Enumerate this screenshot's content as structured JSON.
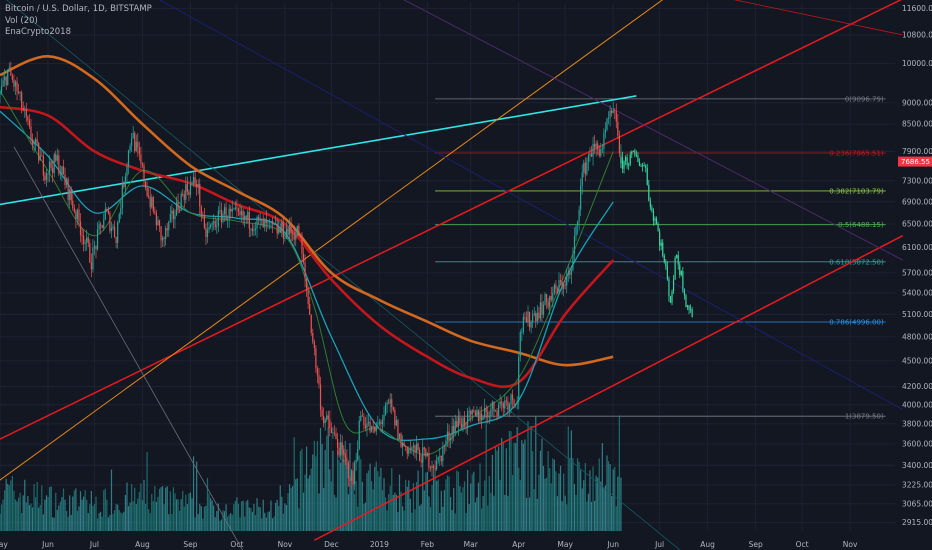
{
  "legend": {
    "line1": "Bitcoin / U.S. Dollar, 1D, BITSTAMP",
    "line2": "Vol (20)",
    "line3": "EnaCrypto2018"
  },
  "colors": {
    "background": "#131722",
    "grid": "#1e2232",
    "axis_text": "#b2b5be",
    "candle_up": "#26a69a",
    "candle_down": "#ef5350",
    "projection": "#36d6a0",
    "ma_fast": "#2e7d32",
    "ma_cyan": "#17a2b8",
    "ma_red": "#c4161c",
    "ma_orange": "#d2691e",
    "trend_cyan": "#2ee6e6",
    "trend_red": "#e8191f",
    "trend_orange": "#e8891a",
    "trend_purple": "#4a2a6a",
    "trend_navy": "#1a1f6e",
    "trend_grey": "#6b6f7a",
    "trend_teal": "#145a66",
    "price_tag": "#f23645"
  },
  "chart_data": {
    "type": "candlestick",
    "title": "Bitcoin / U.S. Dollar, 1D, BITSTAMP",
    "y_axis": {
      "scale": "log",
      "range": [
        2850,
        11800
      ],
      "tick_labels": [
        "11600.00",
        "10800.00",
        "10000.00",
        "9000.00",
        "8500.00",
        "7900.00",
        "7300.00",
        "6900.00",
        "6500.00",
        "6100.00",
        "5700.00",
        "5400.00",
        "5100.00",
        "4800.00",
        "4500.00",
        "4200.00",
        "4000.00",
        "3800.00",
        "3600.00",
        "3400.00",
        "3225.00",
        "3065.00",
        "2915.00"
      ]
    },
    "x_axis": {
      "range": [
        "2018-05-01",
        "2019-11-30"
      ],
      "tick_labels": [
        "May",
        "Jun",
        "Jul",
        "Aug",
        "Sep",
        "Oct",
        "Nov",
        "Dec",
        "2019",
        "Feb",
        "Mar",
        "Apr",
        "May",
        "Jun",
        "Jul",
        "Aug",
        "Sep",
        "Oct",
        "Nov"
      ],
      "tick_dates": [
        "2018-05-01",
        "2018-06-01",
        "2018-07-01",
        "2018-08-01",
        "2018-09-01",
        "2018-10-01",
        "2018-11-01",
        "2018-12-01",
        "2019-01-01",
        "2019-02-01",
        "2019-03-01",
        "2019-04-01",
        "2019-05-01",
        "2019-06-01",
        "2019-07-01",
        "2019-08-01",
        "2019-09-01",
        "2019-10-01",
        "2019-11-01"
      ]
    },
    "current_price": "7686.55",
    "price_anchors": [
      {
        "date": "2018-05-01",
        "price": 9200
      },
      {
        "date": "2018-05-06",
        "price": 9800
      },
      {
        "date": "2018-05-12",
        "price": 9300
      },
      {
        "date": "2018-05-20",
        "price": 8300
      },
      {
        "date": "2018-05-30",
        "price": 7500
      },
      {
        "date": "2018-06-07",
        "price": 7700
      },
      {
        "date": "2018-06-20",
        "price": 6600
      },
      {
        "date": "2018-06-29",
        "price": 5900
      },
      {
        "date": "2018-07-08",
        "price": 6700
      },
      {
        "date": "2018-07-15",
        "price": 6300
      },
      {
        "date": "2018-07-25",
        "price": 8300
      },
      {
        "date": "2018-08-05",
        "price": 7000
      },
      {
        "date": "2018-08-14",
        "price": 6200
      },
      {
        "date": "2018-08-28",
        "price": 7100
      },
      {
        "date": "2018-09-05",
        "price": 7300
      },
      {
        "date": "2018-09-10",
        "price": 6300
      },
      {
        "date": "2018-09-22",
        "price": 6700
      },
      {
        "date": "2018-10-10",
        "price": 6550
      },
      {
        "date": "2018-10-25",
        "price": 6400
      },
      {
        "date": "2018-11-10",
        "price": 6350
      },
      {
        "date": "2018-11-14",
        "price": 5600
      },
      {
        "date": "2018-11-20",
        "price": 4600
      },
      {
        "date": "2018-11-25",
        "price": 3900
      },
      {
        "date": "2018-12-05",
        "price": 3600
      },
      {
        "date": "2018-12-15",
        "price": 3250
      },
      {
        "date": "2018-12-20",
        "price": 3900
      },
      {
        "date": "2018-12-28",
        "price": 3700
      },
      {
        "date": "2019-01-08",
        "price": 4000
      },
      {
        "date": "2019-01-15",
        "price": 3600
      },
      {
        "date": "2019-01-28",
        "price": 3500
      },
      {
        "date": "2019-02-07",
        "price": 3400
      },
      {
        "date": "2019-02-18",
        "price": 3800
      },
      {
        "date": "2019-03-01",
        "price": 3850
      },
      {
        "date": "2019-03-20",
        "price": 4000
      },
      {
        "date": "2019-03-31",
        "price": 4100
      },
      {
        "date": "2019-04-02",
        "price": 4900
      },
      {
        "date": "2019-04-20",
        "price": 5300
      },
      {
        "date": "2019-05-05",
        "price": 5700
      },
      {
        "date": "2019-05-12",
        "price": 7400
      },
      {
        "date": "2019-05-17",
        "price": 7900
      },
      {
        "date": "2019-05-25",
        "price": 8000
      },
      {
        "date": "2019-05-30",
        "price": 8700
      },
      {
        "date": "2019-06-03",
        "price": 8600
      },
      {
        "date": "2019-06-06",
        "price": 7700
      }
    ],
    "projection_anchors": [
      {
        "date": "2019-06-06",
        "price": 7650
      },
      {
        "date": "2019-06-15",
        "price": 7800
      },
      {
        "date": "2019-06-22",
        "price": 7550
      },
      {
        "date": "2019-06-25",
        "price": 6800
      },
      {
        "date": "2019-06-28",
        "price": 6600
      },
      {
        "date": "2019-07-03",
        "price": 6000
      },
      {
        "date": "2019-07-08",
        "price": 5300
      },
      {
        "date": "2019-07-12",
        "price": 6000
      },
      {
        "date": "2019-07-18",
        "price": 5300
      },
      {
        "date": "2019-07-22",
        "price": 5100
      }
    ],
    "moving_averages": [
      {
        "key": "ma_orange",
        "points": [
          {
            "date": "2018-05-01",
            "price": 9700
          },
          {
            "date": "2018-06-01",
            "price": 10200
          },
          {
            "date": "2018-07-01",
            "price": 9600
          },
          {
            "date": "2018-08-01",
            "price": 8500
          },
          {
            "date": "2018-09-01",
            "price": 7600
          },
          {
            "date": "2018-10-01",
            "price": 7100
          },
          {
            "date": "2018-11-01",
            "price": 6600
          },
          {
            "date": "2018-12-01",
            "price": 5700
          },
          {
            "date": "2019-01-01",
            "price": 5300
          },
          {
            "date": "2019-02-01",
            "price": 5000
          },
          {
            "date": "2019-03-01",
            "price": 4750
          },
          {
            "date": "2019-04-01",
            "price": 4600
          },
          {
            "date": "2019-05-01",
            "price": 4450
          },
          {
            "date": "2019-06-01",
            "price": 4550
          }
        ]
      },
      {
        "key": "ma_red",
        "points": [
          {
            "date": "2018-05-01",
            "price": 8900
          },
          {
            "date": "2018-06-01",
            "price": 8700
          },
          {
            "date": "2018-07-01",
            "price": 7900
          },
          {
            "date": "2018-08-01",
            "price": 7500
          },
          {
            "date": "2018-09-01",
            "price": 7250
          },
          {
            "date": "2018-10-01",
            "price": 6850
          },
          {
            "date": "2018-11-01",
            "price": 6500
          },
          {
            "date": "2018-12-01",
            "price": 5600
          },
          {
            "date": "2019-01-01",
            "price": 4950
          },
          {
            "date": "2019-02-01",
            "price": 4550
          },
          {
            "date": "2019-03-01",
            "price": 4300
          },
          {
            "date": "2019-04-01",
            "price": 4250
          },
          {
            "date": "2019-05-01",
            "price": 5100
          },
          {
            "date": "2019-06-01",
            "price": 5900
          }
        ]
      },
      {
        "key": "ma_cyan",
        "points": [
          {
            "date": "2018-05-01",
            "price": 8800
          },
          {
            "date": "2018-06-01",
            "price": 7800
          },
          {
            "date": "2018-07-01",
            "price": 6700
          },
          {
            "date": "2018-08-01",
            "price": 7200
          },
          {
            "date": "2018-09-01",
            "price": 6700
          },
          {
            "date": "2018-10-01",
            "price": 6600
          },
          {
            "date": "2018-11-01",
            "price": 6350
          },
          {
            "date": "2018-12-01",
            "price": 4800
          },
          {
            "date": "2019-01-01",
            "price": 3750
          },
          {
            "date": "2019-02-01",
            "price": 3650
          },
          {
            "date": "2019-03-01",
            "price": 3780
          },
          {
            "date": "2019-04-01",
            "price": 4050
          },
          {
            "date": "2019-05-01",
            "price": 5600
          },
          {
            "date": "2019-06-01",
            "price": 6900
          }
        ]
      },
      {
        "key": "ma_fast",
        "points": [
          {
            "date": "2018-05-01",
            "price": 9300
          },
          {
            "date": "2018-06-01",
            "price": 7500
          },
          {
            "date": "2018-07-01",
            "price": 6300
          },
          {
            "date": "2018-08-01",
            "price": 7500
          },
          {
            "date": "2018-09-01",
            "price": 6700
          },
          {
            "date": "2018-10-01",
            "price": 6550
          },
          {
            "date": "2018-11-01",
            "price": 6300
          },
          {
            "date": "2018-11-20",
            "price": 5200
          },
          {
            "date": "2018-12-10",
            "price": 3800
          },
          {
            "date": "2019-01-01",
            "price": 3750
          },
          {
            "date": "2019-02-01",
            "price": 3500
          },
          {
            "date": "2019-03-01",
            "price": 3850
          },
          {
            "date": "2019-04-01",
            "price": 4300
          },
          {
            "date": "2019-05-01",
            "price": 5700
          },
          {
            "date": "2019-06-01",
            "price": 7900
          }
        ]
      }
    ],
    "trendlines": [
      {
        "key": "trend_cyan",
        "width": 1.6,
        "points": [
          {
            "date": "2018-03-20",
            "price": 6650
          },
          {
            "date": "2019-06-16",
            "price": 9170
          }
        ]
      },
      {
        "key": "trend_red",
        "width": 1.5,
        "points": [
          {
            "date": "2018-03-20",
            "price": 3350
          },
          {
            "date": "2019-12-05",
            "price": 11900
          }
        ]
      },
      {
        "key": "trend_red",
        "width": 1.5,
        "points": [
          {
            "date": "2018-11-20",
            "price": 2780
          },
          {
            "date": "2019-12-05",
            "price": 6300
          }
        ]
      },
      {
        "key": "trend_orange",
        "width": 1,
        "points": [
          {
            "date": "2018-03-20",
            "price": 2880
          },
          {
            "date": "2019-07-20",
            "price": 12500
          }
        ]
      },
      {
        "key": "trend_purple",
        "width": 1,
        "points": [
          {
            "date": "2018-10-01",
            "price": 15000
          },
          {
            "date": "2019-12-05",
            "price": 5900
          }
        ]
      },
      {
        "key": "trend_navy",
        "width": 1,
        "points": [
          {
            "date": "2018-06-01",
            "price": 14000
          },
          {
            "date": "2019-12-05",
            "price": 3950
          }
        ]
      },
      {
        "key": "trend_grey",
        "width": 0.8,
        "points": [
          {
            "date": "2018-05-10",
            "price": 8000
          },
          {
            "date": "2018-10-05",
            "price": 2700
          }
        ]
      },
      {
        "key": "trend_teal",
        "width": 0.8,
        "points": [
          {
            "date": "2018-04-20",
            "price": 12500
          },
          {
            "date": "2019-07-15",
            "price": 2700
          }
        ]
      },
      {
        "key": "ma_red",
        "width": 0.8,
        "points": [
          {
            "date": "2019-06-20",
            "price": 12500
          },
          {
            "date": "2019-12-05",
            "price": 10800
          }
        ]
      }
    ],
    "fib_start": "2019-02-06",
    "fib_end": "2019-11-24",
    "fib_levels": [
      {
        "label": "0(9096.79)",
        "price": 9096.79,
        "color": "#787b86"
      },
      {
        "label": "0.236(7865.51)",
        "price": 7865.51,
        "color": "#c4161c"
      },
      {
        "label": "0.382(7103.79)",
        "price": 7103.79,
        "color": "#8bc34a"
      },
      {
        "label": "0.5(6488.15)",
        "price": 6488.15,
        "color": "#4caf50"
      },
      {
        "label": "0.618(5872.50)",
        "price": 5872.5,
        "color": "#26a69a"
      },
      {
        "label": "0.786(4996.00)",
        "price": 4996.0,
        "color": "#2196f3"
      },
      {
        "label": "1(3879.50)",
        "price": 3879.5,
        "color": "#787b86"
      }
    ],
    "volume_anchors": [
      {
        "date": "2018-05-01",
        "v": 0.45
      },
      {
        "date": "2018-06-01",
        "v": 0.35
      },
      {
        "date": "2018-07-01",
        "v": 0.3
      },
      {
        "date": "2018-08-01",
        "v": 0.38
      },
      {
        "date": "2018-09-01",
        "v": 0.3
      },
      {
        "date": "2018-10-01",
        "v": 0.25
      },
      {
        "date": "2018-11-01",
        "v": 0.25
      },
      {
        "date": "2018-11-20",
        "v": 0.9
      },
      {
        "date": "2018-12-05",
        "v": 0.7
      },
      {
        "date": "2019-01-01",
        "v": 0.5
      },
      {
        "date": "2019-02-01",
        "v": 0.45
      },
      {
        "date": "2019-03-01",
        "v": 0.45
      },
      {
        "date": "2019-04-02",
        "v": 0.85
      },
      {
        "date": "2019-05-01",
        "v": 0.6
      },
      {
        "date": "2019-06-01",
        "v": 0.55
      }
    ]
  }
}
